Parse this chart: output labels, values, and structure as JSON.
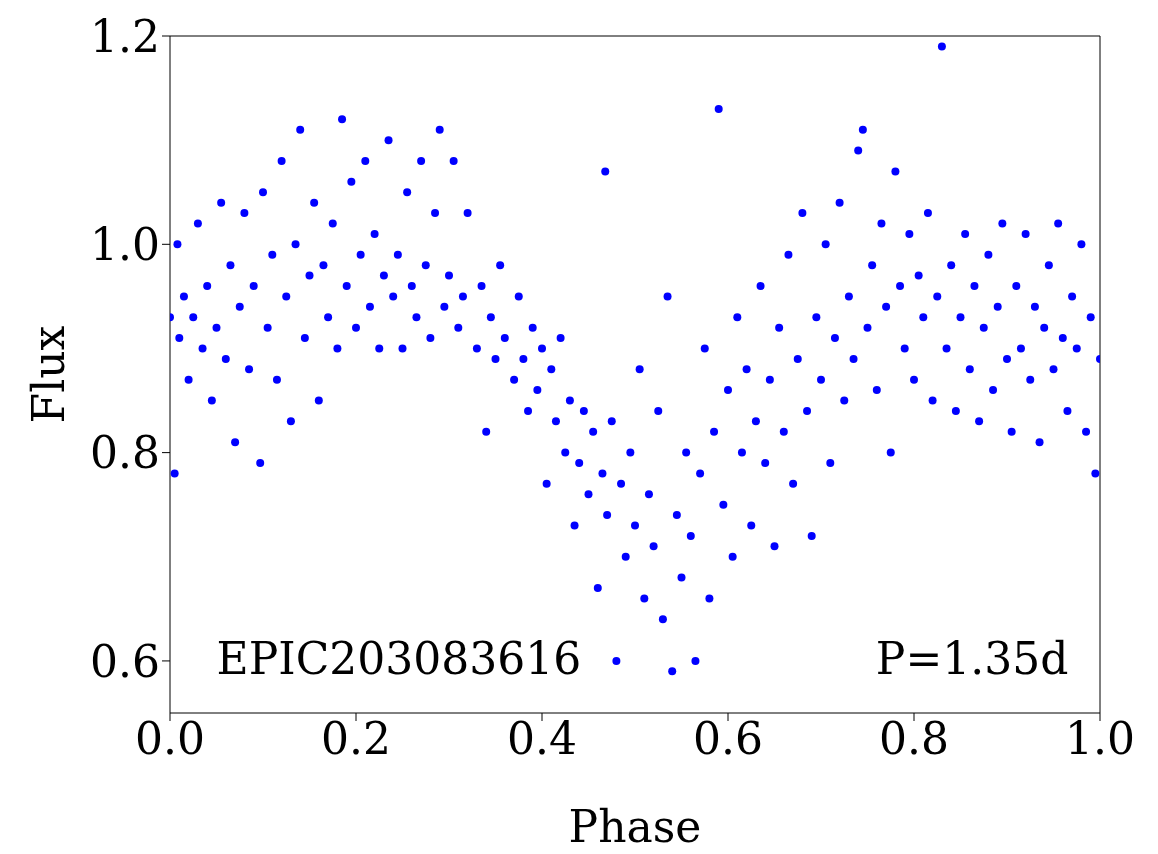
{
  "chart_data": {
    "type": "scatter",
    "xlabel": "Phase",
    "ylabel": "Flux",
    "annotations": [
      "EPIC203083616",
      "P=1.35d"
    ],
    "xlim": [
      0,
      1
    ],
    "xticks": [
      {
        "value": 0,
        "label": "0.0"
      },
      {
        "value": 0.2,
        "label": "0.2"
      },
      {
        "value": 0.4,
        "label": "0.4"
      },
      {
        "value": 0.6,
        "label": "0.6"
      },
      {
        "value": 0.8,
        "label": "0.8"
      },
      {
        "value": 1,
        "label": "1.0"
      }
    ],
    "ylim": [
      0.55,
      1.2
    ],
    "yticks": [
      {
        "value": 0.6,
        "label": "0.6"
      },
      {
        "value": 0.8,
        "label": "0.8"
      },
      {
        "value": 1,
        "label": "1.0"
      },
      {
        "value": 1.2,
        "label": "1.2"
      }
    ],
    "grid": false,
    "legend": false,
    "marker": "circle",
    "color": "#0000ff",
    "x": [
      0,
      0.005,
      0.008,
      0.01,
      0.015,
      0.02,
      0.025,
      0.03,
      0.035,
      0.04,
      0.045,
      0.05,
      0.055,
      0.06,
      0.065,
      0.07,
      0.075,
      0.08,
      0.085,
      0.09,
      0.097,
      0.1,
      0.105,
      0.11,
      0.115,
      0.12,
      0.125,
      0.13,
      0.135,
      0.14,
      0.145,
      0.15,
      0.155,
      0.16,
      0.165,
      0.17,
      0.175,
      0.18,
      0.185,
      0.19,
      0.195,
      0.2,
      0.205,
      0.21,
      0.215,
      0.22,
      0.225,
      0.23,
      0.235,
      0.24,
      0.245,
      0.25,
      0.255,
      0.26,
      0.265,
      0.27,
      0.275,
      0.28,
      0.285,
      0.29,
      0.295,
      0.3,
      0.305,
      0.31,
      0.315,
      0.32,
      0.33,
      0.335,
      0.34,
      0.345,
      0.35,
      0.355,
      0.36,
      0.37,
      0.375,
      0.38,
      0.385,
      0.39,
      0.395,
      0.4,
      0.405,
      0.41,
      0.415,
      0.42,
      0.425,
      0.43,
      0.435,
      0.44,
      0.445,
      0.45,
      0.455,
      0.46,
      0.465,
      0.468,
      0.47,
      0.475,
      0.48,
      0.485,
      0.49,
      0.495,
      0.5,
      0.505,
      0.51,
      0.515,
      0.52,
      0.525,
      0.53,
      0.535,
      0.54,
      0.545,
      0.55,
      0.555,
      0.56,
      0.565,
      0.57,
      0.575,
      0.58,
      0.585,
      0.59,
      0.595,
      0.6,
      0.605,
      0.61,
      0.615,
      0.62,
      0.625,
      0.63,
      0.635,
      0.64,
      0.645,
      0.65,
      0.655,
      0.66,
      0.665,
      0.67,
      0.675,
      0.68,
      0.685,
      0.69,
      0.695,
      0.7,
      0.705,
      0.71,
      0.715,
      0.72,
      0.725,
      0.73,
      0.735,
      0.74,
      0.745,
      0.75,
      0.755,
      0.76,
      0.765,
      0.77,
      0.775,
      0.78,
      0.785,
      0.79,
      0.795,
      0.8,
      0.805,
      0.81,
      0.815,
      0.82,
      0.825,
      0.83,
      0.835,
      0.84,
      0.845,
      0.85,
      0.855,
      0.86,
      0.865,
      0.87,
      0.875,
      0.88,
      0.885,
      0.89,
      0.895,
      0.9,
      0.905,
      0.91,
      0.915,
      0.92,
      0.925,
      0.93,
      0.935,
      0.94,
      0.945,
      0.95,
      0.955,
      0.96,
      0.965,
      0.97,
      0.975,
      0.98,
      0.985,
      0.99,
      0.995,
      1
    ],
    "values": [
      0.93,
      0.78,
      1.0,
      0.91,
      0.95,
      0.87,
      0.93,
      1.02,
      0.9,
      0.96,
      0.85,
      0.92,
      1.04,
      0.89,
      0.98,
      0.81,
      0.94,
      1.03,
      0.88,
      0.96,
      0.79,
      1.05,
      0.92,
      0.99,
      0.87,
      1.08,
      0.95,
      0.83,
      1.0,
      1.11,
      0.91,
      0.97,
      1.04,
      0.85,
      0.98,
      0.93,
      1.02,
      0.9,
      1.12,
      0.96,
      1.06,
      0.92,
      0.99,
      1.08,
      0.94,
      1.01,
      0.9,
      0.97,
      1.1,
      0.95,
      0.99,
      0.9,
      1.05,
      0.96,
      0.93,
      1.08,
      0.98,
      0.91,
      1.03,
      1.11,
      0.94,
      0.97,
      1.08,
      0.92,
      0.95,
      1.03,
      0.9,
      0.96,
      0.82,
      0.93,
      0.89,
      0.98,
      0.91,
      0.87,
      0.95,
      0.89,
      0.84,
      0.92,
      0.86,
      0.9,
      0.77,
      0.88,
      0.83,
      0.91,
      0.8,
      0.85,
      0.73,
      0.79,
      0.84,
      0.76,
      0.82,
      0.67,
      0.78,
      1.07,
      0.74,
      0.83,
      0.6,
      0.77,
      0.7,
      0.8,
      0.73,
      0.88,
      0.66,
      0.76,
      0.71,
      0.84,
      0.64,
      0.95,
      0.59,
      0.74,
      0.68,
      0.8,
      0.72,
      0.6,
      0.78,
      0.9,
      0.66,
      0.82,
      1.13,
      0.75,
      0.86,
      0.7,
      0.93,
      0.8,
      0.88,
      0.73,
      0.83,
      0.96,
      0.79,
      0.87,
      0.71,
      0.92,
      0.82,
      0.99,
      0.77,
      0.89,
      1.03,
      0.84,
      0.72,
      0.93,
      0.87,
      1.0,
      0.79,
      0.91,
      1.04,
      0.85,
      0.95,
      0.89,
      1.09,
      1.11,
      0.92,
      0.98,
      0.86,
      1.02,
      0.94,
      0.8,
      1.07,
      0.96,
      0.9,
      1.01,
      0.87,
      0.97,
      0.93,
      1.03,
      0.85,
      0.95,
      1.19,
      0.9,
      0.98,
      0.84,
      0.93,
      1.01,
      0.88,
      0.96,
      0.83,
      0.92,
      0.99,
      0.86,
      0.94,
      1.02,
      0.89,
      0.82,
      0.96,
      0.9,
      1.01,
      0.87,
      0.94,
      0.81,
      0.92,
      0.98,
      0.88,
      1.02,
      0.91,
      0.84,
      0.95,
      0.9,
      1.0,
      0.82,
      0.93,
      0.78,
      0.89
    ]
  }
}
